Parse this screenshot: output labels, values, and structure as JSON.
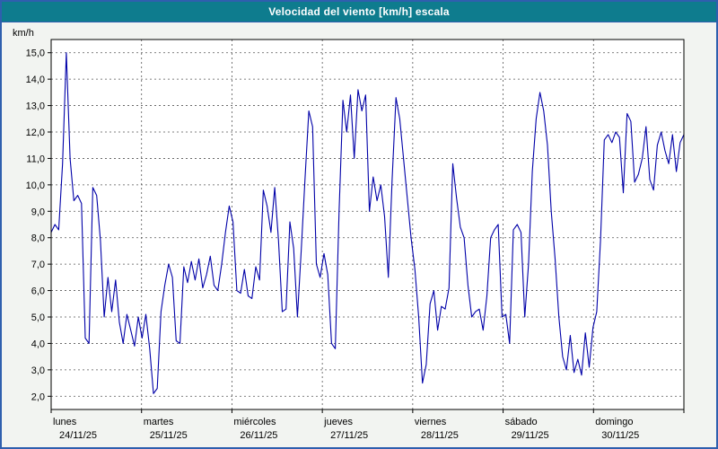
{
  "title_bar": {
    "title": "Velocidad del viento [km/h] escala",
    "bg_color": "#0e7c8e",
    "text_color": "#ffffff"
  },
  "frame": {
    "border_color": "#2f5fae",
    "background_color": "#f2f4f1"
  },
  "chart_data": {
    "type": "line",
    "title": "Velocidad del viento [km/h] escala",
    "ylabel": "km/h",
    "xlabel": "",
    "ylim": [
      1.5,
      15.5
    ],
    "y_ticks": [
      2,
      3,
      4,
      5,
      6,
      7,
      8,
      9,
      10,
      11,
      12,
      13,
      14,
      15
    ],
    "y_tick_labels": [
      "2,0",
      "3,0",
      "4,0",
      "5,0",
      "6,0",
      "7,0",
      "8,0",
      "9,0",
      "10,0",
      "11,0",
      "12,0",
      "13,0",
      "14,0",
      "15,0"
    ],
    "grid": true,
    "grid_style": "dashed",
    "legend": "none",
    "line_color": "#0000a8",
    "plot_bg": "#ffffff",
    "days": [
      {
        "name": "lunes",
        "date": "24/11/25"
      },
      {
        "name": "martes",
        "date": "25/11/25"
      },
      {
        "name": "miércoles",
        "date": "26/11/25"
      },
      {
        "name": "jueves",
        "date": "27/11/25"
      },
      {
        "name": "viernes",
        "date": "28/11/25"
      },
      {
        "name": "sábado",
        "date": "29/11/25"
      },
      {
        "name": "domingo",
        "date": "30/11/25"
      }
    ],
    "values": [
      8.2,
      8.5,
      8.3,
      10.8,
      15.0,
      11.0,
      9.4,
      9.6,
      9.3,
      4.2,
      4.0,
      9.9,
      9.6,
      7.9,
      5.0,
      6.5,
      5.2,
      6.4,
      4.8,
      4.0,
      5.1,
      4.5,
      3.9,
      5.0,
      4.2,
      5.1,
      3.8,
      2.1,
      2.3,
      5.2,
      6.2,
      7.0,
      6.5,
      4.1,
      4.0,
      6.9,
      6.3,
      7.1,
      6.4,
      7.2,
      6.1,
      6.6,
      7.3,
      6.2,
      6.0,
      7.0,
      8.2,
      9.2,
      8.6,
      6.0,
      5.9,
      6.8,
      5.8,
      5.7,
      6.9,
      6.4,
      9.8,
      9.2,
      8.2,
      9.9,
      7.9,
      5.2,
      5.3,
      8.6,
      7.6,
      5.0,
      7.5,
      10.2,
      12.8,
      12.2,
      7.0,
      6.5,
      7.4,
      6.6,
      4.0,
      3.8,
      9.0,
      13.2,
      12.0,
      13.4,
      11.0,
      13.6,
      12.8,
      13.4,
      9.0,
      10.3,
      9.4,
      10.0,
      8.8,
      6.5,
      10.2,
      13.3,
      12.5,
      11.0,
      9.5,
      8.0,
      6.8,
      5.0,
      2.5,
      3.2,
      5.5,
      6.0,
      4.5,
      5.4,
      5.3,
      6.1,
      10.8,
      9.5,
      8.4,
      8.0,
      6.2,
      5.0,
      5.2,
      5.3,
      4.5,
      5.8,
      8.0,
      8.3,
      8.5,
      5.0,
      5.1,
      4.0,
      8.3,
      8.5,
      8.2,
      5.0,
      7.0,
      10.5,
      12.5,
      13.5,
      12.8,
      11.5,
      9.0,
      7.2,
      5.0,
      3.5,
      3.0,
      4.3,
      2.9,
      3.4,
      2.8,
      4.4,
      3.1,
      4.6,
      5.2,
      7.9,
      11.7,
      11.9,
      11.6,
      12.0,
      11.8,
      9.7,
      12.7,
      12.4,
      10.1,
      10.4,
      11.0,
      12.2,
      10.2,
      9.8,
      11.5,
      12.0,
      11.3,
      10.8,
      11.9,
      10.5,
      11.6,
      11.9
    ]
  }
}
